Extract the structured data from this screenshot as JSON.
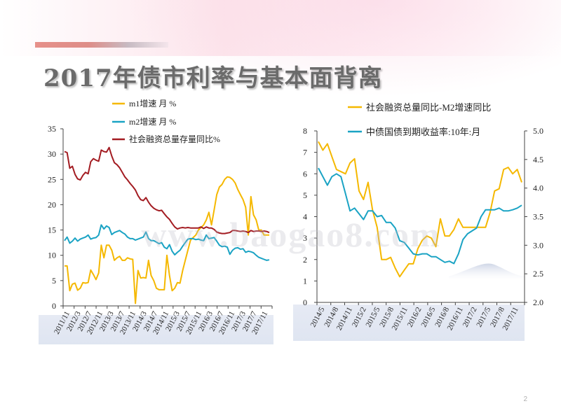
{
  "slide": {
    "title": "2017年债市利率与基本面背离",
    "page_number": "2",
    "watermark": "www.baogao8.com"
  },
  "chart_data": [
    {
      "type": "line",
      "title": "",
      "ylim": [
        0,
        35
      ],
      "yticks": [
        "0",
        "5",
        "10",
        "15",
        "20",
        "25",
        "30",
        "35"
      ],
      "x_tick_labels": [
        "2011/11",
        "2012/3",
        "2012/7",
        "2012/11",
        "2013/3",
        "2013/7",
        "2013/11",
        "2014/3",
        "2014/7",
        "2014/11",
        "2015/3",
        "2015/7",
        "2015/11",
        "2016/3",
        "2016/7",
        "2016/11",
        "2017/3",
        "2017/7",
        "2017/11"
      ],
      "legend_placement": "top",
      "series": [
        {
          "name": "m1增速 月 %",
          "color": "#f5b800",
          "values": [
            7.9,
            7.9,
            3.0,
            4.3,
            4.5,
            3.1,
            3.5,
            4.6,
            4.5,
            4.6,
            7.1,
            6.2,
            5.2,
            6.5,
            12.0,
            9.5,
            12.0,
            12.0,
            11.0,
            9.0,
            9.5,
            9.8,
            9.0,
            9.0,
            9.5,
            9.3,
            9.2,
            0.5,
            7.0,
            5.5,
            5.6,
            5.5,
            9.0,
            6.0,
            5.0,
            3.5,
            3.2,
            3.2,
            3.2,
            10.0,
            6.0,
            3.0,
            3.5,
            4.6,
            4.5,
            7.0,
            9.0,
            11.0,
            13.0,
            13.5,
            14.0,
            15.0,
            15.5,
            16.0,
            17.0,
            18.5,
            16.0,
            19.0,
            22.0,
            23.5,
            24.0,
            25.0,
            25.5,
            25.4,
            25.0,
            24.3,
            23.0,
            22.0,
            21.0,
            19.5,
            14.0,
            21.6,
            18.0,
            17.0,
            15.0,
            15.0,
            14.0,
            14.0,
            14.0
          ]
        },
        {
          "name": "m2增速 月 %",
          "color": "#1aa3c4",
          "values": [
            12.9,
            13.6,
            12.4,
            12.8,
            13.4,
            12.8,
            13.2,
            13.4,
            13.6,
            14.0,
            13.2,
            13.4,
            13.5,
            14.0,
            16.0,
            15.2,
            15.8,
            15.5,
            14.1,
            14.5,
            14.7,
            14.9,
            14.5,
            14.2,
            13.6,
            13.3,
            13.3,
            13.0,
            13.2,
            13.4,
            13.6,
            14.6,
            13.3,
            12.9,
            12.9,
            12.6,
            12.3,
            12.5,
            11.6,
            11.3,
            12.1,
            10.8,
            10.1,
            10.6,
            11.0,
            11.8,
            12.5,
            13.2,
            13.3,
            13.3,
            13.1,
            13.2,
            13.0,
            12.9,
            14.0,
            13.3,
            13.4,
            13.5,
            12.8,
            12.0,
            11.7,
            11.8,
            11.6,
            10.2,
            11.0,
            11.4,
            11.5,
            11.2,
            11.3,
            10.6,
            10.8,
            10.7,
            10.5,
            10.0,
            9.6,
            9.4,
            9.2,
            9.0,
            9.1
          ]
        },
        {
          "name": "社会融资总量存量同比%",
          "color": "#a31c22",
          "values": [
            30.5,
            30.3,
            27.2,
            27.6,
            26.0,
            25.1,
            24.9,
            25.8,
            26.4,
            26.1,
            28.5,
            29.1,
            28.8,
            28.6,
            30.8,
            30.5,
            30.4,
            31.3,
            29.6,
            28.3,
            27.9,
            27.3,
            26.4,
            25.5,
            24.9,
            24.2,
            23.6,
            22.9,
            21.8,
            21.0,
            20.8,
            21.4,
            20.5,
            19.8,
            19.3,
            19.0,
            18.8,
            18.9,
            18.2,
            17.6,
            17.1,
            16.3,
            15.6,
            15.2,
            15.4,
            15.5,
            15.4,
            15.5,
            15.4,
            15.4,
            15.4,
            15.4,
            15.6,
            15.3,
            15.6,
            15.4,
            15.4,
            15.1,
            14.6,
            14.4,
            14.3,
            14.3,
            14.4,
            14.5,
            14.9,
            14.9,
            14.8,
            14.7,
            14.8,
            14.7,
            14.5,
            14.9,
            14.7,
            14.8,
            14.8,
            14.7,
            14.8,
            14.7,
            14.5
          ]
        }
      ]
    },
    {
      "type": "line",
      "title": "",
      "ylim_left": [
        0,
        8
      ],
      "ylim_right": [
        2.0,
        5.0
      ],
      "yticks_left": [
        "0",
        "1",
        "2",
        "3",
        "4",
        "5",
        "6",
        "7",
        "8"
      ],
      "yticks_right": [
        "2.0",
        "2.5",
        "3.0",
        "3.5",
        "4.0",
        "4.5",
        "5.0"
      ],
      "x_tick_labels": [
        "2014/5",
        "2014/8",
        "2014/11",
        "2015/2",
        "2015/5",
        "2015/8",
        "2015/11",
        "2016/2",
        "2016/5",
        "2016/8",
        "2016/11",
        "2017/2",
        "2017/5",
        "2017/8",
        "2017/11"
      ],
      "legend_placement": "top",
      "series": [
        {
          "name": "社会融资总量同比-M2增速同比",
          "color": "#f5b800",
          "axis": "left",
          "values": [
            7.5,
            7.1,
            7.4,
            6.8,
            6.2,
            6.1,
            6.0,
            6.5,
            6.7,
            5.2,
            4.8,
            5.6,
            4.3,
            3.5,
            2.0,
            2.0,
            2.1,
            1.6,
            1.2,
            1.5,
            1.8,
            1.8,
            2.5,
            2.9,
            3.1,
            3.0,
            2.6,
            3.9,
            3.1,
            3.1,
            3.4,
            3.9,
            3.5,
            3.5,
            3.5,
            3.5,
            3.5,
            3.5,
            4.2,
            5.2,
            5.3,
            6.2,
            6.3,
            6.0,
            6.2,
            5.6
          ]
        },
        {
          "name": "中债国债到期收益率:10年:月",
          "color": "#1aa3c4",
          "axis": "right",
          "values": [
            4.35,
            4.2,
            4.05,
            4.2,
            4.25,
            4.2,
            3.9,
            3.6,
            3.65,
            3.55,
            3.45,
            3.6,
            3.6,
            3.5,
            3.52,
            3.4,
            3.4,
            3.3,
            3.08,
            3.05,
            2.95,
            2.85,
            2.83,
            2.85,
            2.85,
            2.8,
            2.8,
            2.75,
            2.7,
            2.72,
            2.68,
            2.85,
            3.1,
            3.2,
            3.25,
            3.3,
            3.5,
            3.62,
            3.62,
            3.62,
            3.65,
            3.6,
            3.6,
            3.62,
            3.65,
            3.7
          ]
        }
      ]
    }
  ]
}
